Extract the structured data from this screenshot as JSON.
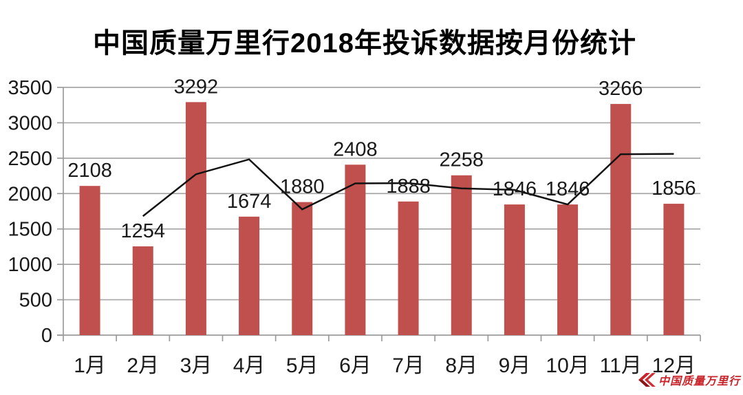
{
  "page": {
    "background": "#ffffff"
  },
  "logo": {
    "icon": "double-chevron-flag-icon",
    "text": "中国质量万里行",
    "color": "#c9242b"
  },
  "chart_data": {
    "type": "bar",
    "title": "中国质量万里行2018年投诉数据按月份统计",
    "categories": [
      "1月",
      "2月",
      "3月",
      "4月",
      "5月",
      "6月",
      "7月",
      "8月",
      "9月",
      "10月",
      "11月",
      "12月"
    ],
    "values": [
      2108,
      1254,
      3292,
      1674,
      1880,
      2408,
      1888,
      2258,
      1846,
      1846,
      3266,
      1856
    ],
    "data_labels": [
      "2108",
      "1254",
      "3292",
      "1674",
      "1880",
      "2408",
      "1888",
      "2258",
      "1846",
      "1846",
      "3266",
      "1856"
    ],
    "line_overlay": {
      "description": "black trend line (2-month moving average as drawn)",
      "color": "#111111",
      "values": [
        null,
        1681,
        2273,
        2483,
        1777,
        2144,
        2148,
        2073,
        2052,
        1846,
        2556,
        2561
      ]
    },
    "xlabel": "",
    "ylabel": "",
    "ylim": [
      0,
      3500
    ],
    "y_ticks": [
      0,
      500,
      1000,
      1500,
      2000,
      2500,
      3000,
      3500
    ],
    "grid": true,
    "legend_position": "none",
    "bar_color": "#c0504d",
    "grid_color": "#a6a6a6",
    "axis_color": "#9b9b9b",
    "label_color": "#1a1a1a"
  }
}
